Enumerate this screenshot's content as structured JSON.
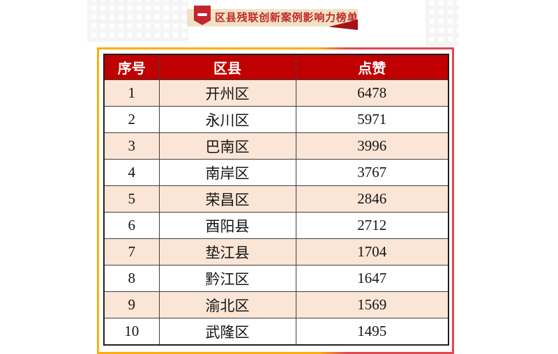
{
  "banner": {
    "title": "区县残联创新案例影响力榜单"
  },
  "table": {
    "columns": [
      "序号",
      "区县",
      "点赞"
    ],
    "rows": [
      {
        "rank": "1",
        "district": "开州区",
        "likes": "6478"
      },
      {
        "rank": "2",
        "district": "永川区",
        "likes": "5971"
      },
      {
        "rank": "3",
        "district": "巴南区",
        "likes": "3996"
      },
      {
        "rank": "4",
        "district": "南岸区",
        "likes": "3767"
      },
      {
        "rank": "5",
        "district": "荣昌区",
        "likes": "2846"
      },
      {
        "rank": "6",
        "district": "酉阳县",
        "likes": "2712"
      },
      {
        "rank": "7",
        "district": "垫江县",
        "likes": "1704"
      },
      {
        "rank": "8",
        "district": "黔江区",
        "likes": "1647"
      },
      {
        "rank": "9",
        "district": "渝北区",
        "likes": "1569"
      },
      {
        "rank": "10",
        "district": "武隆区",
        "likes": "1495"
      }
    ]
  },
  "colors": {
    "header_bg": "#C00000",
    "header_text": "#FFFFFF",
    "row_alt_bg": "#FBE5D6",
    "banner_bg": "#F0E2C4",
    "banner_text": "#C1272D",
    "badge_red": "#C1272D",
    "fold_red": "#A8101A",
    "frame_yellow": "#FFAD0A",
    "frame_red": "#E2474F"
  }
}
